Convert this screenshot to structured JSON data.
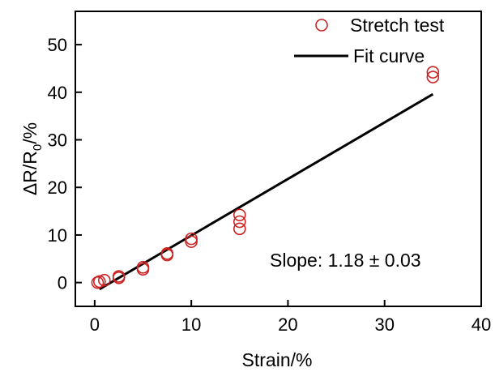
{
  "chart_data": {
    "type": "scatter",
    "xlabel": "Strain/%",
    "ylabel": {
      "delta": "Δ",
      "r1": "R/R",
      "sub": "0",
      "rest": "/%"
    },
    "xlim": [
      -2,
      40
    ],
    "ylim": [
      -5,
      57
    ],
    "x_ticks": [
      0,
      10,
      20,
      30,
      40
    ],
    "y_ticks": [
      0,
      10,
      20,
      30,
      40,
      50
    ],
    "x_tick_labels": [
      "0",
      "10",
      "20",
      "30",
      "40"
    ],
    "y_tick_labels": [
      "0",
      "10",
      "20",
      "30",
      "40",
      "50"
    ],
    "grid": false,
    "legend_position": "top-right",
    "series": [
      {
        "name": "Stretch test",
        "marker": "open-circle",
        "color": "#cc2222",
        "points": [
          {
            "x": 0.3,
            "y": 0.0
          },
          {
            "x": 0.5,
            "y": 0.2
          },
          {
            "x": 1.0,
            "y": 0.5
          },
          {
            "x": 2.5,
            "y": 1.0
          },
          {
            "x": 2.5,
            "y": 1.3
          },
          {
            "x": 5.0,
            "y": 2.8
          },
          {
            "x": 5.0,
            "y": 3.2
          },
          {
            "x": 7.5,
            "y": 5.8
          },
          {
            "x": 7.5,
            "y": 6.1
          },
          {
            "x": 10.0,
            "y": 8.6
          },
          {
            "x": 10.0,
            "y": 9.2
          },
          {
            "x": 15.0,
            "y": 11.3
          },
          {
            "x": 15.0,
            "y": 12.8
          },
          {
            "x": 15.0,
            "y": 14.2
          },
          {
            "x": 35.0,
            "y": 43.2
          },
          {
            "x": 35.0,
            "y": 44.2
          }
        ]
      },
      {
        "name": "Fit curve",
        "type": "line",
        "color": "#000000",
        "points": [
          {
            "x": 0.5,
            "y": -1.4
          },
          {
            "x": 35.0,
            "y": 39.6
          }
        ]
      }
    ],
    "annotations": [
      {
        "text": "Slope: 1.18 ± 0.03"
      }
    ]
  }
}
